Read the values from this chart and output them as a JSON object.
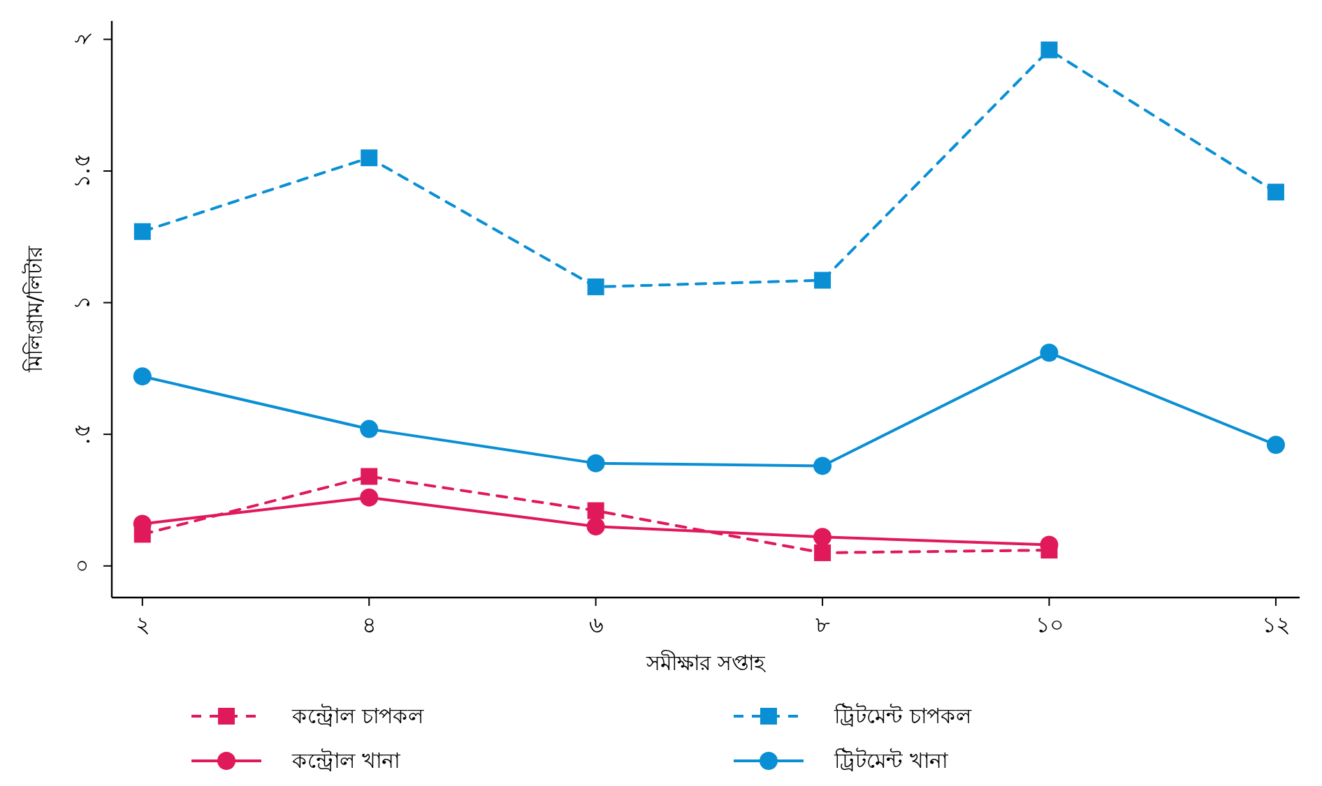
{
  "chart_data": {
    "type": "line",
    "xlabel": "সমীক্ষার সপ্তাহ",
    "ylabel": "মিলিগ্রাম/লিটার",
    "x": [
      2,
      4,
      6,
      8,
      10,
      12
    ],
    "xlim": [
      1.73,
      12.21
    ],
    "ylim": [
      -0.12,
      2.07
    ],
    "xticks": [
      {
        "value": 2,
        "label": "২"
      },
      {
        "value": 4,
        "label": "৪"
      },
      {
        "value": 6,
        "label": "৬"
      },
      {
        "value": 8,
        "label": "৮"
      },
      {
        "value": 10,
        "label": "১০"
      },
      {
        "value": 12,
        "label": "১২"
      }
    ],
    "yticks": [
      {
        "value": 0,
        "label": "০"
      },
      {
        "value": 0.5,
        "label": ".৫"
      },
      {
        "value": 1,
        "label": "১"
      },
      {
        "value": 1.5,
        "label": "১.৫"
      },
      {
        "value": 2,
        "label": "২"
      }
    ],
    "grid": false,
    "legend": "bottom",
    "series": [
      {
        "name": "কন্ট্রোল চাপকল",
        "color": "#e0195a",
        "marker": "square",
        "line_style": "dashed",
        "values": [
          0.12,
          0.34,
          0.21,
          0.05,
          0.06,
          null
        ]
      },
      {
        "name": "ট্রিটমেন্ট চাপকল",
        "color": "#0a8fd4",
        "marker": "square",
        "line_style": "dashed",
        "values": [
          1.27,
          1.55,
          1.06,
          1.085,
          1.96,
          1.42
        ]
      },
      {
        "name": "কন্ট্রোল খানা",
        "color": "#e0195a",
        "marker": "circle",
        "line_style": "solid",
        "values": [
          0.16,
          0.26,
          0.15,
          0.11,
          0.08,
          null
        ]
      },
      {
        "name": "ট্রিটমেন্ট খানা",
        "color": "#0a8fd4",
        "marker": "circle",
        "line_style": "solid",
        "values": [
          0.72,
          0.52,
          0.39,
          0.38,
          0.81,
          0.46
        ]
      }
    ]
  }
}
